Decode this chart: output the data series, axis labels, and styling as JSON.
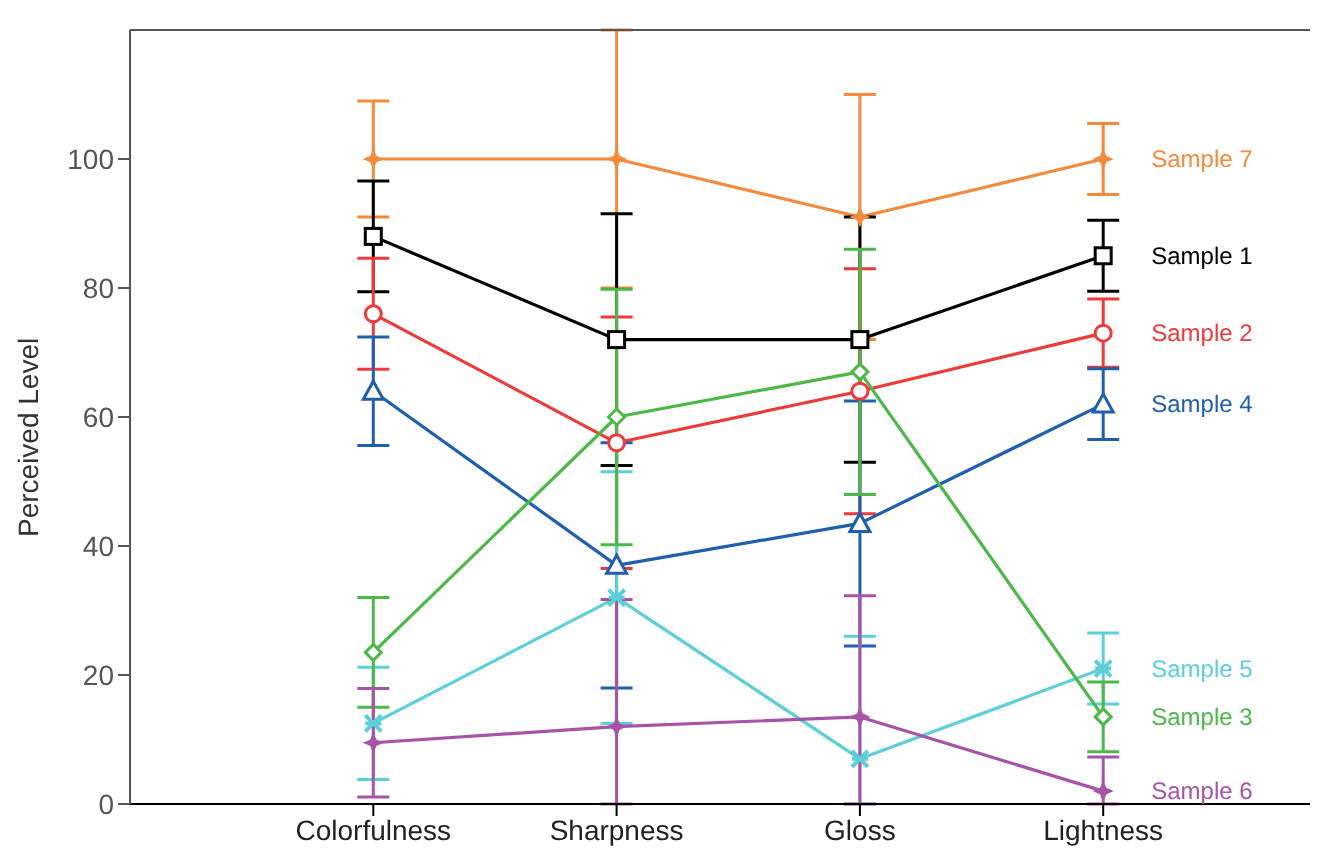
{
  "chart_data": {
    "type": "line",
    "ylabel": "Perceived Level",
    "categories": [
      "Colorfulness",
      "Sharpness",
      "Gloss",
      "Lightness"
    ],
    "ylim": [
      0,
      120
    ],
    "yticks": [
      0,
      20,
      40,
      60,
      80,
      100
    ],
    "series": [
      {
        "name": "Sample 7",
        "color": "#f58a3c",
        "marker": "star",
        "values": [
          100,
          100,
          91,
          100
        ],
        "errors": [
          9,
          [
            80,
            120
          ],
          19,
          5.5
        ]
      },
      {
        "name": "Sample 1",
        "color": "#000000",
        "marker": "square",
        "values": [
          88,
          72,
          72,
          85
        ],
        "errors": [
          8.6,
          19.5,
          19,
          5.5
        ]
      },
      {
        "name": "Sample 2",
        "color": "#ee3a3a",
        "marker": "circle",
        "values": [
          76,
          56,
          64,
          73
        ],
        "errors": [
          8.6,
          19.5,
          19,
          5.3
        ]
      },
      {
        "name": "Sample 4",
        "color": "#1f5fad",
        "marker": "triangle",
        "values": [
          64,
          37,
          43.5,
          62
        ],
        "errors": [
          8.4,
          19,
          19,
          5.5
        ]
      },
      {
        "name": "Sample 5",
        "color": "#5ccfd8",
        "marker": "cross",
        "values": [
          12.5,
          32,
          7,
          21
        ],
        "errors": [
          8.7,
          19.5,
          [
            0,
            26
          ],
          5.5
        ]
      },
      {
        "name": "Sample 3",
        "color": "#4cb848",
        "marker": "diamond",
        "values": [
          23.5,
          60,
          67,
          13.5
        ],
        "errors": [
          8.5,
          19.8,
          19,
          5.4
        ]
      },
      {
        "name": "Sample 6",
        "color": "#a754a8",
        "marker": "star",
        "values": [
          9.5,
          12,
          13.5,
          2
        ],
        "errors": [
          8.4,
          [
            0,
            31.7
          ],
          [
            0,
            32.3
          ],
          [
            0,
            7.3
          ]
        ]
      }
    ]
  }
}
